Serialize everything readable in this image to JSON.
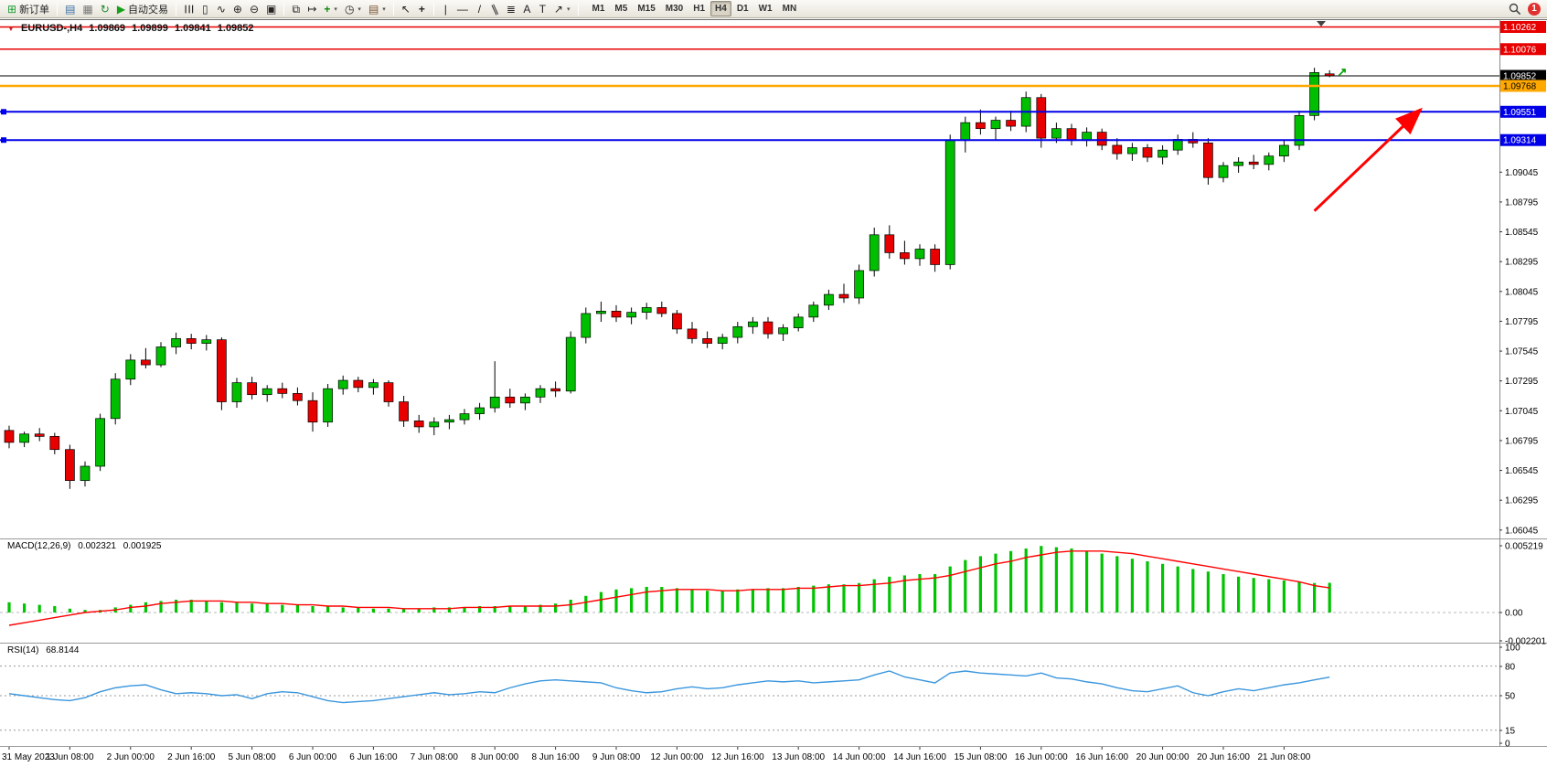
{
  "toolbar": {
    "new_order_label": "新订单",
    "autotrading_label": "自动交易",
    "timeframes": [
      "M1",
      "M5",
      "M15",
      "M30",
      "H1",
      "H4",
      "D1",
      "W1",
      "MN"
    ],
    "active_timeframe": "H4",
    "notification_count": "1",
    "icons": {
      "new_order": "⊞",
      "chart_window": "▤",
      "profiles": "▦",
      "refresh": "↻",
      "autotrading": "▶",
      "bars": "☰",
      "candles": "▯",
      "line": "∿",
      "zoom_in": "⊕",
      "zoom_out": "⊖",
      "tile": "▣",
      "cascade": "⧉",
      "shift": "↦",
      "indicators": "+",
      "periods": "◷",
      "templates": "▤",
      "cursor": "↖",
      "crosshair": "+",
      "vline": "|",
      "hline": "—",
      "trendline": "/",
      "channel": "∥",
      "fibonacci": "≣",
      "text": "A",
      "label": "T",
      "shapes": "↗",
      "caret": "▾"
    }
  },
  "chart": {
    "header": {
      "symbol_period": "EURUSD-,H4",
      "open": "1.09869",
      "high": "1.09899",
      "low": "1.09841",
      "close": "1.09852"
    },
    "indicators": {
      "macd": {
        "label": "MACD(12,26,9)",
        "value1": "0.002321",
        "value2": "0.001925",
        "axis": [
          "0.005219",
          "0.00",
          "-0.002201"
        ]
      },
      "rsi": {
        "label": "RSI(14)",
        "value": "68.8144",
        "axis": [
          "100",
          "80",
          "50",
          "15",
          "0"
        ]
      }
    },
    "price_axis_labels": [
      "1.09045",
      "1.08795",
      "1.08545",
      "1.08295",
      "1.08045",
      "1.07795",
      "1.07545",
      "1.07295",
      "1.07045",
      "1.06795",
      "1.06545",
      "1.06295",
      "1.06045"
    ]
  },
  "chart_data": {
    "type": "candlestick",
    "symbol": "EURUSD",
    "timeframe": "H4",
    "price_range": [
      1.06,
      1.1032
    ],
    "up_color": "#00bf00",
    "down_color": "#e80000",
    "candles": [
      [
        1.0688,
        1.0692,
        1.0673,
        1.0678
      ],
      [
        1.0678,
        1.0687,
        1.0674,
        1.0685
      ],
      [
        1.0685,
        1.069,
        1.0679,
        1.0683
      ],
      [
        1.0683,
        1.0686,
        1.0668,
        1.0672
      ],
      [
        1.0672,
        1.0676,
        1.0639,
        1.0646
      ],
      [
        1.0646,
        1.0662,
        1.0641,
        1.0658
      ],
      [
        1.0658,
        1.0702,
        1.0654,
        1.0698
      ],
      [
        1.0698,
        1.0736,
        1.0693,
        1.0731
      ],
      [
        1.0731,
        1.0752,
        1.0726,
        1.0747
      ],
      [
        1.0747,
        1.0757,
        1.074,
        1.0743
      ],
      [
        1.0743,
        1.0762,
        1.0741,
        1.0758
      ],
      [
        1.0758,
        1.077,
        1.0752,
        1.0765
      ],
      [
        1.0765,
        1.0769,
        1.0756,
        1.0761
      ],
      [
        1.0761,
        1.0768,
        1.0755,
        1.0764
      ],
      [
        1.0764,
        1.0766,
        1.0705,
        1.0712
      ],
      [
        1.0712,
        1.0732,
        1.0707,
        1.0728
      ],
      [
        1.0728,
        1.0733,
        1.0714,
        1.0718
      ],
      [
        1.0718,
        1.0726,
        1.0712,
        1.0723
      ],
      [
        1.0723,
        1.0728,
        1.0715,
        1.0719
      ],
      [
        1.0719,
        1.0724,
        1.0709,
        1.0713
      ],
      [
        1.0713,
        1.072,
        1.0687,
        1.0695
      ],
      [
        1.0695,
        1.0727,
        1.0691,
        1.0723
      ],
      [
        1.0723,
        1.0734,
        1.0718,
        1.073
      ],
      [
        1.073,
        1.0733,
        1.072,
        1.0724
      ],
      [
        1.0724,
        1.0731,
        1.0718,
        1.0728
      ],
      [
        1.0728,
        1.073,
        1.0708,
        1.0712
      ],
      [
        1.0712,
        1.0717,
        1.0691,
        1.0696
      ],
      [
        1.0696,
        1.0701,
        1.0686,
        1.0691
      ],
      [
        1.0691,
        1.0699,
        1.0684,
        1.0695
      ],
      [
        1.0695,
        1.0701,
        1.0689,
        1.0697
      ],
      [
        1.0697,
        1.0706,
        1.0693,
        1.0702
      ],
      [
        1.0702,
        1.0711,
        1.0697,
        1.0707
      ],
      [
        1.0707,
        1.0746,
        1.0703,
        1.0716
      ],
      [
        1.0716,
        1.0723,
        1.0707,
        1.0711
      ],
      [
        1.0711,
        1.0719,
        1.0705,
        1.0716
      ],
      [
        1.0716,
        1.0726,
        1.0711,
        1.0723
      ],
      [
        1.0723,
        1.0729,
        1.0716,
        1.0721
      ],
      [
        1.0721,
        1.0771,
        1.0719,
        1.0766
      ],
      [
        1.0766,
        1.0791,
        1.0761,
        1.0786
      ],
      [
        1.0786,
        1.0796,
        1.0779,
        1.0788
      ],
      [
        1.0788,
        1.0793,
        1.0779,
        1.0783
      ],
      [
        1.0783,
        1.0791,
        1.0777,
        1.0787
      ],
      [
        1.0787,
        1.0795,
        1.0781,
        1.0791
      ],
      [
        1.0791,
        1.0796,
        1.0783,
        1.0786
      ],
      [
        1.0786,
        1.0789,
        1.0769,
        1.0773
      ],
      [
        1.0773,
        1.0779,
        1.0761,
        1.0765
      ],
      [
        1.0765,
        1.0771,
        1.0757,
        1.0761
      ],
      [
        1.0761,
        1.0769,
        1.0756,
        1.0766
      ],
      [
        1.0766,
        1.0779,
        1.0761,
        1.0775
      ],
      [
        1.0775,
        1.0783,
        1.0769,
        1.0779
      ],
      [
        1.0779,
        1.0783,
        1.0765,
        1.0769
      ],
      [
        1.0769,
        1.0777,
        1.0763,
        1.0774
      ],
      [
        1.0774,
        1.0786,
        1.0771,
        1.0783
      ],
      [
        1.0783,
        1.0796,
        1.0779,
        1.0793
      ],
      [
        1.0793,
        1.0806,
        1.0789,
        1.0802
      ],
      [
        1.0802,
        1.0811,
        1.0795,
        1.0799
      ],
      [
        1.0799,
        1.0827,
        1.0794,
        1.0822
      ],
      [
        1.0822,
        1.0858,
        1.0817,
        1.0852
      ],
      [
        1.0852,
        1.086,
        1.0832,
        1.0837
      ],
      [
        1.0837,
        1.0847,
        1.0827,
        1.0832
      ],
      [
        1.0832,
        1.0844,
        1.0826,
        1.084
      ],
      [
        1.084,
        1.0844,
        1.0821,
        1.0827
      ],
      [
        1.0827,
        1.0936,
        1.0823,
        1.0931
      ],
      [
        1.0931,
        1.0951,
        1.0921,
        1.0946
      ],
      [
        1.0946,
        1.0957,
        1.0936,
        1.0941
      ],
      [
        1.0941,
        1.0951,
        1.0931,
        1.0948
      ],
      [
        1.0948,
        1.0956,
        1.0939,
        1.0943
      ],
      [
        1.0943,
        1.0972,
        1.0938,
        1.0967
      ],
      [
        1.0967,
        1.097,
        1.0925,
        1.0933
      ],
      [
        1.0933,
        1.0946,
        1.0929,
        1.0941
      ],
      [
        1.0941,
        1.0945,
        1.0927,
        1.0931
      ],
      [
        1.0931,
        1.0942,
        1.0926,
        1.0938
      ],
      [
        1.0938,
        1.0941,
        1.0923,
        1.0927
      ],
      [
        1.0927,
        1.0933,
        1.0915,
        1.092
      ],
      [
        1.092,
        1.0929,
        1.0914,
        1.0925
      ],
      [
        1.0925,
        1.0928,
        1.0913,
        1.0917
      ],
      [
        1.0917,
        1.0927,
        1.0911,
        1.0923
      ],
      [
        1.0923,
        1.0936,
        1.0919,
        1.0932
      ],
      [
        1.0932,
        1.0938,
        1.0925,
        1.0929
      ],
      [
        1.0929,
        1.0933,
        1.0894,
        1.09
      ],
      [
        1.09,
        1.0913,
        1.0896,
        1.091
      ],
      [
        1.091,
        1.0917,
        1.0904,
        1.0913
      ],
      [
        1.0913,
        1.0919,
        1.0907,
        1.0911
      ],
      [
        1.0911,
        1.0921,
        1.0906,
        1.0918
      ],
      [
        1.0918,
        1.0931,
        1.0913,
        1.0927
      ],
      [
        1.0927,
        1.0956,
        1.0923,
        1.0952
      ],
      [
        1.0952,
        1.0992,
        1.0948,
        1.0988
      ],
      [
        1.09869,
        1.09899,
        1.09841,
        1.09852
      ]
    ],
    "time_labels": [
      "31 May 2023",
      "1 Jun 08:00",
      "2 Jun 00:00",
      "2 Jun 16:00",
      "5 Jun 08:00",
      "6 Jun 00:00",
      "6 Jun 16:00",
      "7 Jun 08:00",
      "8 Jun 00:00",
      "8 Jun 16:00",
      "9 Jun 08:00",
      "12 Jun 00:00",
      "12 Jun 16:00",
      "13 Jun 08:00",
      "14 Jun 00:00",
      "14 Jun 16:00",
      "15 Jun 08:00",
      "16 Jun 00:00",
      "16 Jun 16:00",
      "20 Jun 00:00",
      "20 Jun 16:00",
      "21 Jun 08:00"
    ],
    "bars_per_label": 4,
    "hlines": [
      {
        "price": 1.10262,
        "label": "1.10262",
        "color": "#e80000",
        "text_color": "#ffffff",
        "width": 1.5
      },
      {
        "price": 1.10076,
        "label": "1.10076",
        "color": "#e80000",
        "text_color": "#ffffff",
        "width": 1.5
      },
      {
        "price": 1.09852,
        "label": "1.09852",
        "color": "#000000",
        "text_color": "#ffffff",
        "width": 1,
        "role": "current-price"
      },
      {
        "price": 1.09768,
        "label": "1.09768",
        "color": "#ffa800",
        "text_color": "#000000",
        "width": 2.5
      },
      {
        "price": 1.09551,
        "label": "1.09551",
        "color": "#0000e8",
        "text_color": "#ffffff",
        "width": 2,
        "left_marker": true
      },
      {
        "price": 1.09314,
        "label": "1.09314",
        "color": "#0000e8",
        "text_color": "#ffffff",
        "width": 2,
        "left_marker": true
      }
    ],
    "macd": {
      "hist_color": "#00c400",
      "signal_color": "#ff0000",
      "histogram": [
        0.0008,
        0.0007,
        0.0006,
        0.0005,
        0.0003,
        0.0002,
        0.0002,
        0.0004,
        0.0006,
        0.0008,
        0.0009,
        0.001,
        0.001,
        0.0009,
        0.0008,
        0.0008,
        0.0007,
        0.0007,
        0.0006,
        0.0006,
        0.0005,
        0.0005,
        0.0004,
        0.0004,
        0.0003,
        0.0003,
        0.0003,
        0.0003,
        0.0004,
        0.0004,
        0.0004,
        0.0005,
        0.0005,
        0.0005,
        0.0005,
        0.0006,
        0.0007,
        0.001,
        0.0013,
        0.0016,
        0.0018,
        0.0019,
        0.002,
        0.002,
        0.0019,
        0.0018,
        0.0017,
        0.0017,
        0.0018,
        0.0018,
        0.0019,
        0.0019,
        0.002,
        0.0021,
        0.0022,
        0.0022,
        0.0023,
        0.0026,
        0.0028,
        0.0029,
        0.003,
        0.003,
        0.0036,
        0.0041,
        0.0044,
        0.0046,
        0.0048,
        0.005,
        0.0052,
        0.0051,
        0.005,
        0.0048,
        0.0046,
        0.0044,
        0.0042,
        0.004,
        0.0038,
        0.0036,
        0.0034,
        0.0032,
        0.003,
        0.0028,
        0.0027,
        0.0026,
        0.0025,
        0.0024,
        0.0023,
        0.002321
      ],
      "signal": [
        -0.001,
        -0.0008,
        -0.0006,
        -0.0004,
        -0.0002,
        0.0,
        0.0001,
        0.0002,
        0.0004,
        0.0005,
        0.0007,
        0.0008,
        0.0009,
        0.0009,
        0.0009,
        0.0008,
        0.0008,
        0.0007,
        0.0007,
        0.0006,
        0.0006,
        0.0005,
        0.0005,
        0.0004,
        0.0004,
        0.0004,
        0.0003,
        0.0003,
        0.0003,
        0.0003,
        0.0004,
        0.0004,
        0.0004,
        0.0005,
        0.0005,
        0.0005,
        0.0005,
        0.0006,
        0.0008,
        0.001,
        0.0012,
        0.0014,
        0.0016,
        0.0017,
        0.0018,
        0.0018,
        0.0018,
        0.0017,
        0.0017,
        0.0018,
        0.0018,
        0.0018,
        0.0019,
        0.0019,
        0.002,
        0.0021,
        0.0021,
        0.0022,
        0.0023,
        0.0025,
        0.0026,
        0.0027,
        0.0029,
        0.0032,
        0.0035,
        0.0038,
        0.004,
        0.0043,
        0.0045,
        0.0047,
        0.0048,
        0.0048,
        0.0048,
        0.0047,
        0.0046,
        0.0044,
        0.0042,
        0.004,
        0.0038,
        0.0036,
        0.0034,
        0.0032,
        0.003,
        0.0028,
        0.0026,
        0.0024,
        0.0021,
        0.001925
      ]
    },
    "rsi": {
      "color": "#3a96dd",
      "levels": [
        80,
        50,
        15
      ],
      "series": [
        52,
        50,
        48,
        46,
        45,
        48,
        54,
        58,
        60,
        61,
        56,
        52,
        53,
        52,
        50,
        51,
        47,
        52,
        54,
        53,
        49,
        45,
        43,
        44,
        45,
        47,
        49,
        51,
        53,
        51,
        52,
        54,
        53,
        58,
        62,
        65,
        66,
        65,
        64,
        63,
        58,
        55,
        53,
        54,
        57,
        59,
        57,
        58,
        61,
        63,
        65,
        64,
        65,
        63,
        64,
        65,
        66,
        71,
        75,
        69,
        66,
        63,
        73,
        75,
        73,
        72,
        71,
        70,
        73,
        68,
        67,
        64,
        62,
        58,
        55,
        54,
        57,
        60,
        53,
        50,
        54,
        57,
        55,
        58,
        61,
        63,
        66,
        68.81
      ]
    },
    "annotations": [
      {
        "type": "trend-arrow",
        "color": "#ff0000",
        "from_bar": 86,
        "from_price": 1.0872,
        "to_bar": 93,
        "to_price": 1.0957
      },
      {
        "type": "up-arrow-marker",
        "color": "#00a000",
        "bar": 87.8,
        "price": 1.0993
      }
    ]
  }
}
